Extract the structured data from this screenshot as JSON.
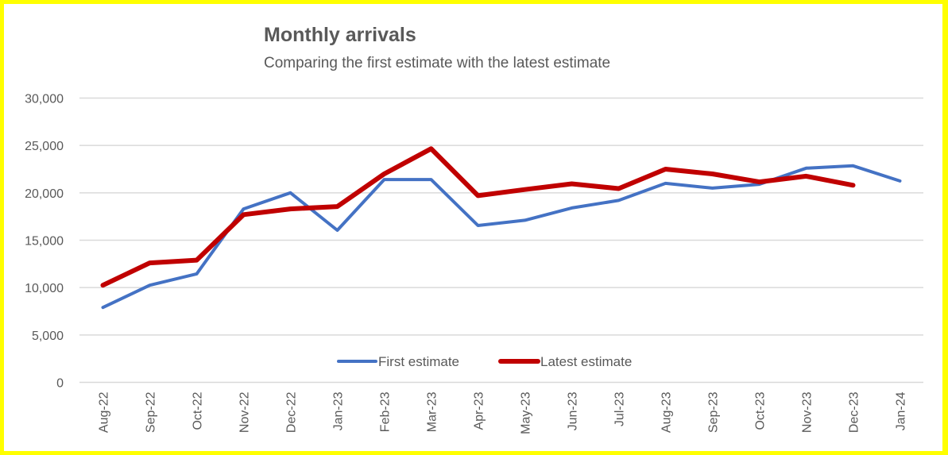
{
  "chart_data": {
    "type": "line",
    "title": "Monthly arrivals",
    "subtitle": "Comparing the first estimate with the latest estimate",
    "xlabel": "",
    "ylabel": "",
    "ylim": [
      0,
      30000
    ],
    "yticks": [
      0,
      5000,
      10000,
      15000,
      20000,
      25000,
      30000
    ],
    "ytick_labels": [
      "0",
      "5,000",
      "10,000",
      "15,000",
      "20,000",
      "25,000",
      "30,000"
    ],
    "grid": true,
    "legend_position": "bottom-center-inside",
    "categories": [
      "Aug-22",
      "Sep-22",
      "Oct-22",
      "Nov-22",
      "Dec-22",
      "Jan-23",
      "Feb-23",
      "Mar-23",
      "Apr-23",
      "May-23",
      "Jun-23",
      "Jul-23",
      "Aug-23",
      "Sep-23",
      "Oct-23",
      "Nov-23",
      "Dec-23",
      "Jan-24"
    ],
    "series": [
      {
        "name": "First estimate",
        "color": "#4472c4",
        "values": [
          7900,
          10250,
          11450,
          18300,
          20000,
          16050,
          21400,
          21400,
          16550,
          17100,
          18400,
          19200,
          21000,
          20500,
          20900,
          22600,
          22850,
          21250
        ]
      },
      {
        "name": "Latest estimate",
        "color": "#c00000",
        "values": [
          10250,
          12600,
          12900,
          17700,
          18300,
          18550,
          22000,
          24650,
          19700,
          20350,
          20950,
          20450,
          22500,
          22000,
          21150,
          21750,
          20800,
          null
        ]
      }
    ]
  },
  "colors": {
    "border": "#ffff00",
    "gridline": "#d9d9d9",
    "text": "#595959"
  }
}
